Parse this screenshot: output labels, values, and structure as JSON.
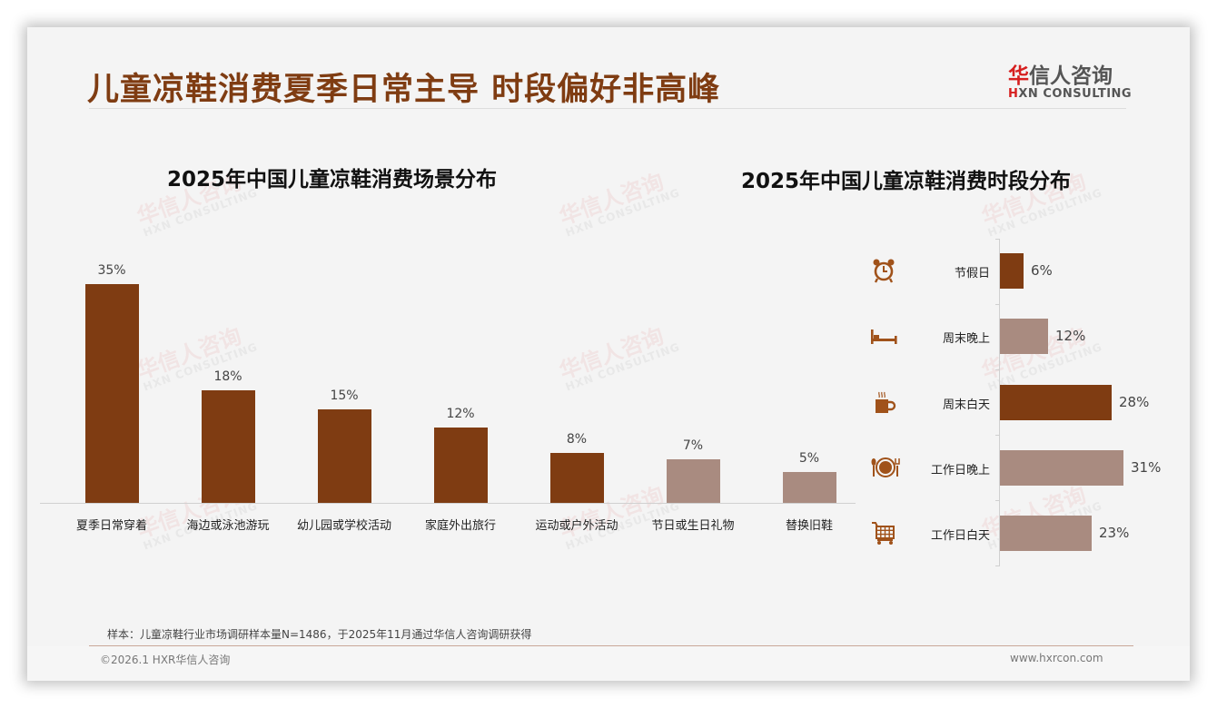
{
  "header": {
    "title": "儿童凉鞋消费夏季日常主导 时段偏好非高峰",
    "logo_cn_accent": "华",
    "logo_cn_rest": "信人咨询",
    "logo_en_accent": "H",
    "logo_en_rest": "XN CONSULTING"
  },
  "watermark": {
    "cn": "华信人咨询",
    "en": "HXN CONSULTING"
  },
  "colors": {
    "primary": "#7f3c12",
    "secondary": "#a98b80",
    "title": "#7f3c12"
  },
  "chart_data": [
    {
      "type": "bar",
      "title": "2025年中国儿童凉鞋消费场景分布",
      "categories": [
        "夏季日常穿着",
        "海边或泳池游玩",
        "幼儿园或学校活动",
        "家庭外出旅行",
        "运动或户外活动",
        "节日或生日礼物",
        "替换旧鞋"
      ],
      "values": [
        35,
        18,
        15,
        12,
        8,
        7,
        5
      ],
      "labels": [
        "35%",
        "18%",
        "15%",
        "12%",
        "8%",
        "7%",
        "5%"
      ],
      "colors": [
        "#7f3c12",
        "#7f3c12",
        "#7f3c12",
        "#7f3c12",
        "#7f3c12",
        "#a98b80",
        "#a98b80"
      ],
      "xlabel": "",
      "ylabel": "",
      "unit": "%",
      "grid": false,
      "legend": "none"
    },
    {
      "type": "bar",
      "orientation": "horizontal",
      "title": "2025年中国儿童凉鞋消费时段分布",
      "categories": [
        "节假日",
        "周末晚上",
        "周末白天",
        "工作日晚上",
        "工作日白天"
      ],
      "values": [
        6,
        12,
        28,
        31,
        23
      ],
      "labels": [
        "6%",
        "12%",
        "28%",
        "31%",
        "23%"
      ],
      "icons": [
        "alarm-clock-icon",
        "bed-icon",
        "hot-cup-icon",
        "dining-plate-icon",
        "shopping-cart-icon"
      ],
      "colors": [
        "#7f3c12",
        "#a98b80",
        "#7f3c12",
        "#a98b80",
        "#a98b80"
      ],
      "xlabel": "",
      "ylabel": "",
      "unit": "%",
      "grid": false,
      "legend": "none"
    }
  ],
  "footer": {
    "note": "样本：儿童凉鞋行业市场调研样本量N=1486，于2025年11月通过华信人咨询调研获得",
    "copyright": "©2026.1 HXR华信人咨询",
    "website": "www.hxrcon.com"
  }
}
